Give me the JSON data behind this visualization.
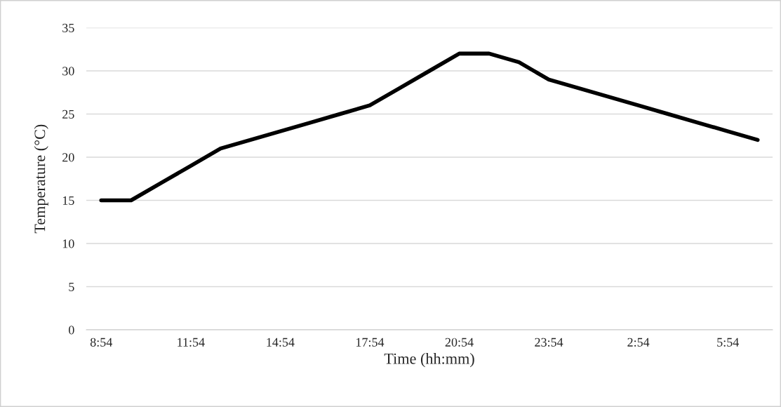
{
  "chart_data": {
    "type": "line",
    "xlabel": "Time (hh:mm)",
    "ylabel": "Temperature (°C)",
    "categories": [
      "8:54",
      null,
      null,
      "11:54",
      null,
      null,
      "14:54",
      null,
      null,
      "17:54",
      null,
      null,
      "20:54",
      null,
      null,
      "23:54",
      null,
      null,
      "2:54",
      null,
      null,
      "5:54",
      null
    ],
    "series": [
      {
        "color": "#000000",
        "values": [
          15,
          15,
          17,
          19,
          21,
          22,
          23,
          24,
          25,
          26,
          28,
          30,
          32,
          32,
          31,
          29,
          28,
          27,
          26,
          25,
          24,
          23,
          22
        ]
      }
    ],
    "ylim": [
      0,
      35
    ],
    "yticks": [
      0,
      5,
      10,
      15,
      20,
      25,
      30,
      35
    ],
    "grid": "y",
    "legend": false,
    "marker": "none",
    "line_style": "solid"
  }
}
